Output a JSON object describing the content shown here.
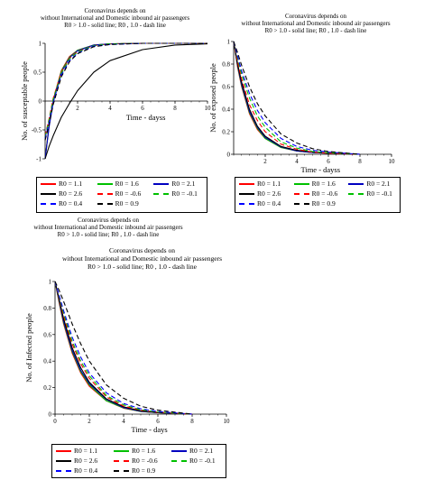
{
  "lone_title": {
    "line1": "Coronavirus depends on",
    "line2": "without International and Domestic inbound air passengers",
    "line3": "R0 > 1.0 - solid line; R0 , 1.0 - dash line"
  },
  "colors": {
    "R0 = 1.1": "#ff0000",
    "R0 = 1.6": "#00c000",
    "R0 = 2.1": "#0000c0",
    "R0 = 2.6": "#000000",
    "R0 = -0.6": "#ff0000",
    "R0 = -0.1": "#00c000",
    "R0 = 0.4": "#0000ff",
    "R0 = 0.9": "#000000"
  },
  "legend_rows": [
    [
      {
        "label": "R0 = 1.1",
        "dash": false
      },
      {
        "label": "R0 = 1.6",
        "dash": false
      },
      {
        "label": "R0 = 2.1",
        "dash": false
      }
    ],
    [
      {
        "label": "R0 = 2.6",
        "dash": false
      },
      {
        "label": "R0 = -0.6",
        "dash": true
      },
      {
        "label": "R0 = -0.1",
        "dash": true
      }
    ],
    [
      {
        "label": "R0 = 0.4",
        "dash": true
      },
      {
        "label": "R0 = 0.9",
        "dash": true
      }
    ]
  ],
  "chart_data": [
    {
      "type": "line",
      "title": [
        "Coronavirus depends on",
        "without International and Domestic inbound air passengers",
        "R0 > 1.0 - solid line; R0 , 1.0 - dash line"
      ],
      "xlabel": "Time - dayss",
      "ylabel": "No. of susceptable people",
      "xlim": [
        0,
        10
      ],
      "ylim": [
        -1,
        1
      ],
      "xticks": [
        "2",
        "4",
        "6",
        "8",
        "10"
      ],
      "yticks": [
        "-1",
        "-0.5",
        "0",
        "0.5",
        "1"
      ],
      "grid": false,
      "series": [
        {
          "name": "R0 = 1.1",
          "x": [
            0,
            0.25,
            0.5,
            1,
            1.5,
            2,
            3,
            4,
            6,
            8,
            10
          ],
          "y": [
            -1,
            -0.4,
            0.02,
            0.53,
            0.77,
            0.88,
            0.97,
            0.99,
            1,
            1,
            1
          ]
        },
        {
          "name": "R0 = 1.6",
          "x": [
            0,
            0.25,
            0.5,
            1,
            1.5,
            2,
            3,
            4,
            6,
            8,
            10
          ],
          "y": [
            -1,
            -0.42,
            0.0,
            0.52,
            0.76,
            0.88,
            0.97,
            0.99,
            1,
            1,
            1
          ]
        },
        {
          "name": "R0 = 2.1",
          "x": [
            0,
            0.25,
            0.5,
            1,
            1.5,
            2,
            3,
            4,
            6,
            8,
            10
          ],
          "y": [
            -1,
            -0.44,
            -0.02,
            0.5,
            0.75,
            0.87,
            0.97,
            0.99,
            1,
            1,
            1
          ]
        },
        {
          "name": "R0 = 2.6",
          "x": [
            0,
            0.25,
            0.5,
            1,
            1.5,
            2,
            3,
            4,
            6,
            8,
            10
          ],
          "y": [
            -1,
            -0.78,
            -0.6,
            -0.28,
            -0.04,
            0.18,
            0.5,
            0.7,
            0.89,
            0.97,
            0.99
          ]
        },
        {
          "name": "R0 = -0.6",
          "x": [
            0,
            0.25,
            0.5,
            1,
            1.5,
            2,
            3,
            4,
            6,
            8,
            10
          ],
          "y": [
            -0.6,
            -0.3,
            0.05,
            0.5,
            0.74,
            0.86,
            0.96,
            0.99,
            1,
            1,
            1
          ]
        },
        {
          "name": "R0 = -0.1",
          "x": [
            0,
            0.25,
            0.5,
            1,
            1.5,
            2,
            3,
            4,
            6,
            8,
            10
          ],
          "y": [
            -0.62,
            -0.32,
            0.03,
            0.48,
            0.73,
            0.85,
            0.96,
            0.99,
            1,
            1,
            1
          ]
        },
        {
          "name": "R0 = 0.4",
          "x": [
            0,
            0.25,
            0.5,
            1,
            1.5,
            2,
            3,
            4,
            6,
            8,
            10
          ],
          "y": [
            -0.65,
            -0.36,
            -0.02,
            0.45,
            0.7,
            0.83,
            0.95,
            0.98,
            1,
            1,
            1
          ]
        },
        {
          "name": "R0 = 0.9",
          "x": [
            0,
            0.25,
            0.5,
            1,
            1.5,
            2,
            3,
            4,
            6,
            8,
            10
          ],
          "y": [
            -0.68,
            -0.4,
            -0.06,
            0.42,
            0.68,
            0.82,
            0.94,
            0.98,
            1,
            1,
            1
          ]
        }
      ]
    },
    {
      "type": "line",
      "title": [
        "Coronavirus depends on",
        "without International and Domestic inbound air passengers",
        "R0 > 1.0 - solid line; R0 , 1.0 - dash line"
      ],
      "xlabel": "Time - dayss",
      "ylabel": "No. of exposed people",
      "xlim": [
        0,
        10
      ],
      "ylim": [
        0,
        1
      ],
      "xticks": [
        "2",
        "4",
        "6",
        "8",
        "10"
      ],
      "yticks": [
        "0",
        "0.2",
        "0.4",
        "0.6",
        "0.8",
        "1"
      ],
      "grid": false,
      "series": [
        {
          "name": "R0 = 1.1",
          "x": [
            0,
            0.25,
            0.5,
            1,
            1.5,
            2,
            3,
            4,
            5,
            6,
            8
          ],
          "y": [
            1,
            0.77,
            0.6,
            0.36,
            0.22,
            0.14,
            0.06,
            0.03,
            0.015,
            0.01,
            0.0
          ]
        },
        {
          "name": "R0 = 1.6",
          "x": [
            0,
            0.25,
            0.5,
            1,
            1.5,
            2,
            3,
            4,
            5,
            6,
            8
          ],
          "y": [
            1,
            0.78,
            0.61,
            0.37,
            0.23,
            0.14,
            0.06,
            0.03,
            0.015,
            0.01,
            0.0
          ]
        },
        {
          "name": "R0 = 2.1",
          "x": [
            0,
            0.25,
            0.5,
            1,
            1.5,
            2,
            3,
            4,
            5,
            6,
            8
          ],
          "y": [
            1,
            0.79,
            0.62,
            0.38,
            0.24,
            0.15,
            0.065,
            0.03,
            0.015,
            0.01,
            0.0
          ]
        },
        {
          "name": "R0 = 2.6",
          "x": [
            0,
            0.25,
            0.5,
            1,
            1.5,
            2,
            3,
            4,
            5,
            6,
            8
          ],
          "y": [
            1,
            0.8,
            0.64,
            0.4,
            0.25,
            0.16,
            0.07,
            0.035,
            0.02,
            0.01,
            0.0
          ]
        },
        {
          "name": "R0 = -0.6",
          "x": [
            0,
            0.25,
            0.5,
            1,
            1.5,
            2,
            3,
            4,
            5,
            6,
            8
          ],
          "y": [
            1,
            0.82,
            0.67,
            0.44,
            0.3,
            0.2,
            0.09,
            0.045,
            0.02,
            0.01,
            0.0
          ]
        },
        {
          "name": "R0 = -0.1",
          "x": [
            0,
            0.25,
            0.5,
            1,
            1.5,
            2,
            3,
            4,
            5,
            6,
            8
          ],
          "y": [
            1,
            0.85,
            0.71,
            0.5,
            0.34,
            0.24,
            0.11,
            0.055,
            0.025,
            0.015,
            0.0
          ]
        },
        {
          "name": "R0 = 0.4",
          "x": [
            0,
            0.25,
            0.5,
            1,
            1.5,
            2,
            3,
            4,
            5,
            6,
            8
          ],
          "y": [
            1,
            0.87,
            0.74,
            0.54,
            0.39,
            0.28,
            0.14,
            0.07,
            0.035,
            0.02,
            0.0
          ]
        },
        {
          "name": "R0 = 0.9",
          "x": [
            0,
            0.25,
            0.5,
            1,
            1.5,
            2,
            3,
            4,
            5,
            6,
            8
          ],
          "y": [
            1,
            0.9,
            0.79,
            0.6,
            0.45,
            0.34,
            0.18,
            0.1,
            0.05,
            0.025,
            0.0
          ]
        }
      ]
    },
    {
      "type": "line",
      "title": [
        "Coronavirus depends on",
        "without International and Domestic inbound air passengers",
        "R0 > 1.0 - solid line; R0 , 1.0 - dash line"
      ],
      "xlabel": "Time - days",
      "ylabel": "No. of Infected people",
      "xlim": [
        0,
        10
      ],
      "ylim": [
        0,
        1
      ],
      "xticks": [
        "0",
        "2",
        "4",
        "6",
        "8",
        "10"
      ],
      "yticks": [
        "0",
        "0.2",
        "0.4",
        "0.6",
        "0.8",
        "1"
      ],
      "grid": false,
      "series": [
        {
          "name": "R0 = 1.1",
          "x": [
            0,
            0.25,
            0.5,
            1,
            1.5,
            2,
            3,
            4,
            5,
            6,
            8
          ],
          "y": [
            1,
            0.83,
            0.68,
            0.46,
            0.31,
            0.21,
            0.1,
            0.045,
            0.02,
            0.01,
            0.0
          ]
        },
        {
          "name": "R0 = 1.6",
          "x": [
            0,
            0.25,
            0.5,
            1,
            1.5,
            2,
            3,
            4,
            5,
            6,
            8
          ],
          "y": [
            1,
            0.84,
            0.69,
            0.47,
            0.32,
            0.22,
            0.1,
            0.047,
            0.02,
            0.01,
            0.0
          ]
        },
        {
          "name": "R0 = 2.1",
          "x": [
            0,
            0.25,
            0.5,
            1,
            1.5,
            2,
            3,
            4,
            5,
            6,
            8
          ],
          "y": [
            1,
            0.85,
            0.7,
            0.48,
            0.33,
            0.23,
            0.11,
            0.05,
            0.022,
            0.01,
            0.0
          ]
        },
        {
          "name": "R0 = 2.6",
          "x": [
            0,
            0.25,
            0.5,
            1,
            1.5,
            2,
            3,
            4,
            5,
            6,
            8
          ],
          "y": [
            1,
            0.86,
            0.72,
            0.5,
            0.35,
            0.24,
            0.115,
            0.055,
            0.025,
            0.012,
            0.0
          ]
        },
        {
          "name": "R0 = -0.6",
          "x": [
            0,
            0.25,
            0.5,
            1,
            1.5,
            2,
            3,
            4,
            5,
            6,
            8
          ],
          "y": [
            1,
            0.87,
            0.74,
            0.53,
            0.38,
            0.27,
            0.13,
            0.06,
            0.03,
            0.014,
            0.0
          ]
        },
        {
          "name": "R0 = -0.1",
          "x": [
            0,
            0.25,
            0.5,
            1,
            1.5,
            2,
            3,
            4,
            5,
            6,
            8
          ],
          "y": [
            1,
            0.88,
            0.76,
            0.55,
            0.4,
            0.29,
            0.14,
            0.07,
            0.033,
            0.016,
            0.0
          ]
        },
        {
          "name": "R0 = 0.4",
          "x": [
            0,
            0.25,
            0.5,
            1,
            1.5,
            2,
            3,
            4,
            5,
            6,
            8
          ],
          "y": [
            1,
            0.89,
            0.78,
            0.58,
            0.43,
            0.31,
            0.16,
            0.08,
            0.04,
            0.02,
            0.0
          ]
        },
        {
          "name": "R0 = 0.9",
          "x": [
            0,
            0.25,
            0.5,
            1,
            1.5,
            2,
            3,
            4,
            5,
            6,
            8
          ],
          "y": [
            1,
            0.93,
            0.85,
            0.68,
            0.53,
            0.4,
            0.22,
            0.12,
            0.06,
            0.03,
            0.0
          ]
        }
      ]
    }
  ]
}
